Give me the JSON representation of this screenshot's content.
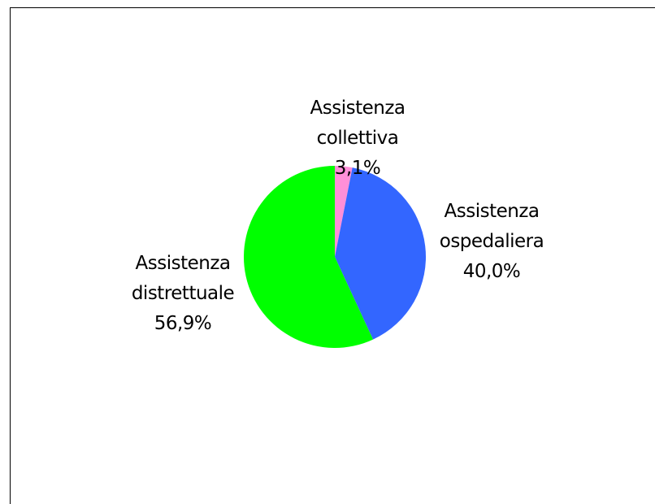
{
  "chart_data": {
    "type": "pie",
    "categories": [
      "Assistenza collettiva",
      "Assistenza ospedaliera",
      "Assistenza distrettuale"
    ],
    "values": [
      3.1,
      40.0,
      56.9
    ],
    "value_labels": [
      "3,1%",
      "40,0%",
      "56,9%"
    ],
    "colors": [
      "#ff8fd8",
      "#3366ff",
      "#00ff00"
    ]
  }
}
